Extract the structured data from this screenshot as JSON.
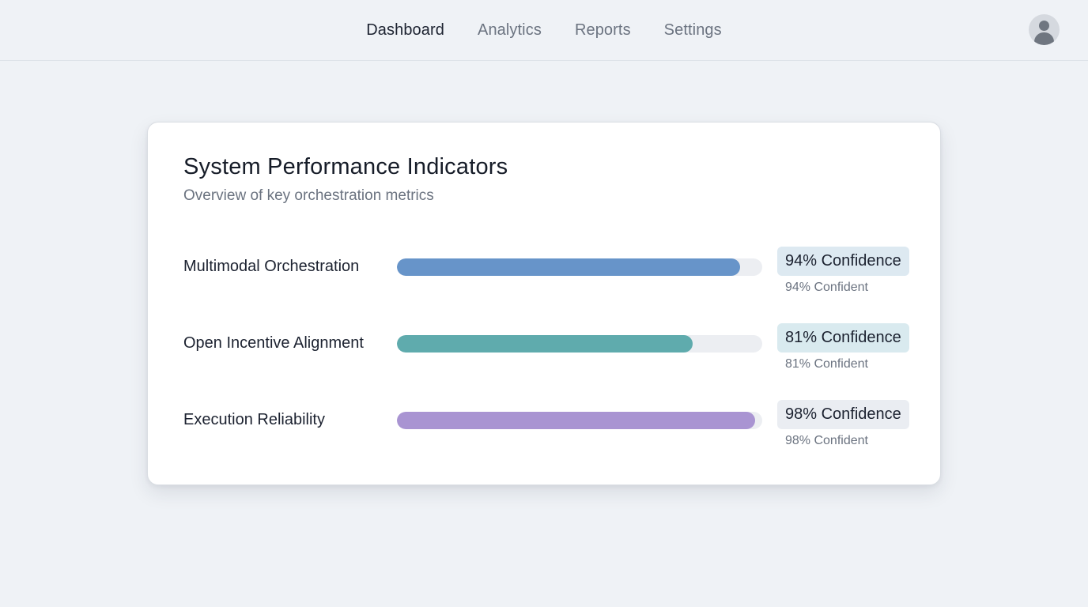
{
  "nav": {
    "items": [
      {
        "label": "Dashboard",
        "active": true
      },
      {
        "label": "Analytics",
        "active": false
      },
      {
        "label": "Reports",
        "active": false
      },
      {
        "label": "Settings",
        "active": false
      }
    ],
    "avatar_icon": "user-avatar-icon"
  },
  "card": {
    "title": "System Performance Indicators",
    "subtitle": "Overview of key orchestration metrics",
    "metrics": [
      {
        "label": "Multimodal Orchestration",
        "value": 0.94,
        "color": "#6794c9",
        "badge": "94% Confidence",
        "badge_bg": "#dde9f1",
        "caption": "94% Confident"
      },
      {
        "label": "Open Incentive Alignment",
        "value": 0.81,
        "color": "#5fabad",
        "badge": "81% Confidence",
        "badge_bg": "#d9eaef",
        "caption": "81% Confident"
      },
      {
        "label": "Execution Reliability",
        "value": 0.98,
        "color": "#a994d2",
        "badge": "98% Confidence",
        "badge_bg": "#eaedf2",
        "caption": "98% Confident"
      }
    ]
  }
}
